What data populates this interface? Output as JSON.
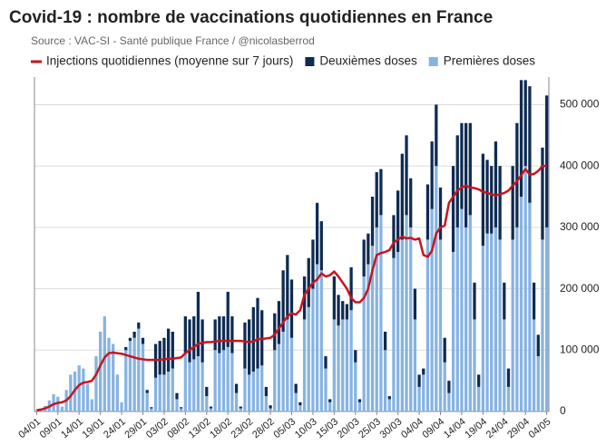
{
  "chart_data": {
    "type": "bar",
    "title": "Covid-19 : nombre de vaccinations quotidiennes en France",
    "subtitle": "Source : VAC-SI - Santé publique France / @nicolasberrod",
    "categories": [
      "04/01",
      null,
      null,
      null,
      null,
      "09/01",
      null,
      null,
      null,
      null,
      "14/01",
      null,
      null,
      null,
      null,
      "19/01",
      null,
      null,
      null,
      null,
      "24/01",
      null,
      null,
      null,
      null,
      "29/01",
      null,
      null,
      null,
      null,
      "03/02",
      null,
      null,
      null,
      null,
      "08/02",
      null,
      null,
      null,
      null,
      "13/02",
      null,
      null,
      null,
      null,
      "18/02",
      null,
      null,
      null,
      null,
      "23/02",
      null,
      null,
      null,
      null,
      "28/02",
      null,
      null,
      null,
      null,
      "05/03",
      null,
      null,
      null,
      null,
      "10/03",
      null,
      null,
      null,
      null,
      "15/03",
      null,
      null,
      null,
      null,
      "20/03",
      null,
      null,
      null,
      null,
      "25/03",
      null,
      null,
      null,
      null,
      "30/03",
      null,
      null,
      null,
      null,
      "04/04",
      null,
      null,
      null,
      null,
      "09/04",
      null,
      null,
      null,
      null,
      "14/04",
      null,
      null,
      null,
      null,
      "19/04",
      null,
      null,
      null,
      null,
      "24/04",
      null,
      null,
      null,
      null,
      "29/04",
      null,
      null,
      null,
      null,
      "04/05"
    ],
    "series": [
      {
        "name": "Injections quotidiennes (moyenne sur 7 jours)",
        "type": "line",
        "color": "#c8141e",
        "values": [
          2000,
          3000,
          5000,
          8000,
          12000,
          14000,
          15000,
          18000,
          25000,
          35000,
          43000,
          47000,
          48000,
          50000,
          60000,
          75000,
          88000,
          95000,
          96000,
          95000,
          94000,
          92000,
          90000,
          88000,
          86000,
          85000,
          84000,
          84000,
          84000,
          84000,
          85000,
          86000,
          86000,
          87000,
          88000,
          95000,
          100000,
          105000,
          110000,
          112000,
          113000,
          113000,
          114000,
          115000,
          115000,
          115000,
          115000,
          115000,
          115000,
          114000,
          113000,
          114000,
          118000,
          118000,
          119000,
          120000,
          125000,
          135000,
          145000,
          155000,
          160000,
          158000,
          165000,
          190000,
          200000,
          210000,
          215000,
          225000,
          220000,
          222000,
          228000,
          220000,
          210000,
          200000,
          185000,
          178000,
          178000,
          185000,
          200000,
          230000,
          255000,
          258000,
          260000,
          263000,
          275000,
          280000,
          285000,
          282000,
          283000,
          280000,
          282000,
          255000,
          252000,
          262000,
          290000,
          300000,
          303000,
          340000,
          350000,
          360000,
          365000,
          368000,
          365000,
          364000,
          362000,
          358000,
          356000,
          354000,
          352000,
          354000,
          356000,
          360000,
          368000,
          375000,
          385000,
          395000,
          386000,
          387000,
          392000,
          400000,
          400000
        ]
      },
      {
        "name": "Deuxièmes doses",
        "type": "bar",
        "color": "#0e2b52",
        "values": [
          0,
          0,
          0,
          0,
          0,
          0,
          0,
          0,
          0,
          0,
          0,
          0,
          0,
          0,
          0,
          0,
          0,
          0,
          0,
          0,
          0,
          5000,
          5000,
          10000,
          10000,
          10000,
          5000,
          2000,
          55000,
          55000,
          60000,
          70000,
          60000,
          10000,
          2000,
          60000,
          70000,
          70000,
          105000,
          70000,
          15000,
          3000,
          50000,
          60000,
          55000,
          90000,
          60000,
          15000,
          3000,
          75000,
          90000,
          105000,
          115000,
          90000,
          15000,
          5000,
          60000,
          70000,
          100000,
          105000,
          95000,
          15000,
          5000,
          70000,
          80000,
          80000,
          100000,
          80000,
          20000,
          5000,
          70000,
          50000,
          30000,
          25000,
          70000,
          20000,
          5000,
          60000,
          50000,
          80000,
          90000,
          75000,
          30000,
          5000,
          70000,
          100000,
          140000,
          130000,
          80000,
          50000,
          20000,
          10000,
          90000,
          110000,
          100000,
          85000,
          40000,
          20000,
          140000,
          150000,
          140000,
          170000,
          150000,
          60000,
          20000,
          150000,
          120000,
          110000,
          140000,
          120000,
          60000,
          30000,
          120000,
          170000,
          190000,
          140000,
          190000,
          60000,
          35000,
          150000,
          215000
        ]
      },
      {
        "name": "Premières doses",
        "type": "bar",
        "color": "#86b3e2",
        "values": [
          2000,
          5000,
          9000,
          18000,
          28000,
          24000,
          8000,
          35000,
          60000,
          65000,
          75000,
          70000,
          45000,
          20000,
          90000,
          130000,
          155000,
          120000,
          110000,
          60000,
          15000,
          100000,
          115000,
          120000,
          135000,
          110000,
          30000,
          5000,
          55000,
          60000,
          60000,
          65000,
          70000,
          20000,
          5000,
          95000,
          80000,
          85000,
          90000,
          80000,
          25000,
          5000,
          100000,
          95000,
          100000,
          105000,
          95000,
          30000,
          5000,
          70000,
          60000,
          65000,
          70000,
          75000,
          25000,
          5000,
          100000,
          110000,
          130000,
          150000,
          120000,
          30000,
          10000,
          150000,
          170000,
          200000,
          240000,
          230000,
          70000,
          15000,
          150000,
          140000,
          150000,
          150000,
          165000,
          80000,
          15000,
          220000,
          240000,
          270000,
          300000,
          320000,
          100000,
          20000,
          250000,
          260000,
          280000,
          320000,
          300000,
          150000,
          40000,
          60000,
          280000,
          330000,
          400000,
          280000,
          80000,
          30000,
          260000,
          300000,
          330000,
          300000,
          320000,
          150000,
          40000,
          270000,
          290000,
          290000,
          300000,
          280000,
          150000,
          40000,
          280000,
          300000,
          350000,
          400000,
          340000,
          150000,
          90000,
          280000,
          300000
        ]
      }
    ],
    "ylim": [
      0,
      545000
    ],
    "yticks": [
      0,
      {
        "value": 100000,
        "label": "100 000"
      },
      {
        "value": 200000,
        "label": "200 000"
      },
      {
        "value": 300000,
        "label": "300 000"
      },
      {
        "value": 400000,
        "label": "400 000"
      },
      {
        "value": 500000,
        "label": "500 000"
      }
    ],
    "grid": true,
    "y_axis_side": "right",
    "legend": "top"
  }
}
